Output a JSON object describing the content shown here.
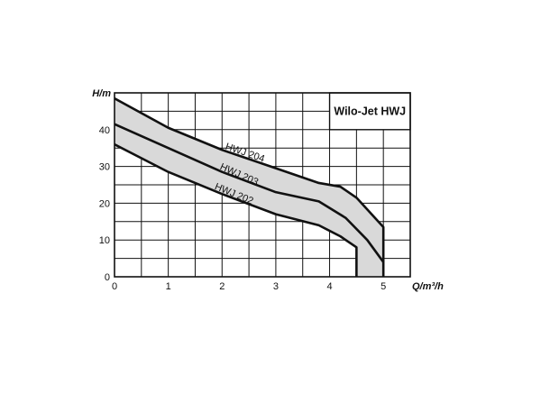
{
  "chart_data": {
    "type": "line",
    "title": "Wilo-Jet HWJ",
    "xlabel": "Q/m³/h",
    "ylabel": "H/m",
    "xlim": [
      0,
      5.5
    ],
    "ylim": [
      0,
      50
    ],
    "x_ticks": [
      0,
      1,
      2,
      3,
      4,
      5
    ],
    "y_ticks": [
      0,
      10,
      20,
      30,
      40
    ],
    "grid": true,
    "grid_x_step": 0.5,
    "grid_y_step": 5,
    "shaded_band": true,
    "band_color": "#d9d9d9",
    "line_color": "#111111",
    "series": [
      {
        "name": "HWJ 204",
        "points": [
          [
            0,
            48.5
          ],
          [
            1,
            40.5
          ],
          [
            2,
            34.5
          ],
          [
            3,
            29.5
          ],
          [
            3.8,
            25.5
          ],
          [
            4.2,
            24.5
          ],
          [
            4.5,
            21.5
          ],
          [
            5,
            13.5
          ],
          [
            5,
            0
          ]
        ]
      },
      {
        "name": "HWJ 203",
        "points": [
          [
            0,
            41.5
          ],
          [
            1,
            35
          ],
          [
            2,
            28.5
          ],
          [
            3,
            23
          ],
          [
            3.8,
            20.5
          ],
          [
            4.3,
            16
          ],
          [
            4.7,
            10
          ],
          [
            5,
            4
          ]
        ]
      },
      {
        "name": "HWJ 202",
        "points": [
          [
            0,
            36
          ],
          [
            1,
            28.5
          ],
          [
            2,
            22.5
          ],
          [
            3,
            17
          ],
          [
            3.8,
            14
          ],
          [
            4.2,
            11
          ],
          [
            4.5,
            8
          ],
          [
            4.5,
            0
          ]
        ]
      }
    ]
  }
}
